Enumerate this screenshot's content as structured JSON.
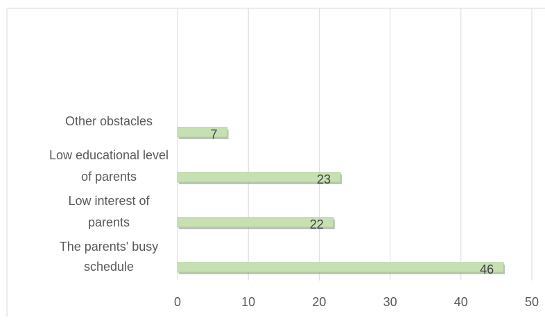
{
  "chart_data": {
    "type": "bar",
    "orientation": "horizontal",
    "categories": [
      [
        "The parents' busy",
        "schedule"
      ],
      [
        "Low interest of",
        "parents"
      ],
      [
        "Low educational level",
        "of parents"
      ],
      [
        "Other obstacles"
      ]
    ],
    "values": [
      46,
      22,
      23,
      7
    ],
    "data_labels": [
      "46",
      "22",
      "23",
      "7"
    ],
    "xlim": [
      0,
      50
    ],
    "x_ticks": [
      0,
      10,
      20,
      30,
      40,
      50
    ],
    "x_tick_labels": [
      "0",
      "10",
      "20",
      "30",
      "40",
      "50"
    ],
    "grid": true,
    "title": "",
    "xlabel": "",
    "ylabel": "",
    "colors": {
      "bar_fill": "#c6e0b4",
      "bar_edge": "#a9cf90",
      "bar_shadow": "#8c8c8c",
      "gridline": "#d9d9d9",
      "border": "#d9d9d9",
      "text": "#595959"
    }
  }
}
